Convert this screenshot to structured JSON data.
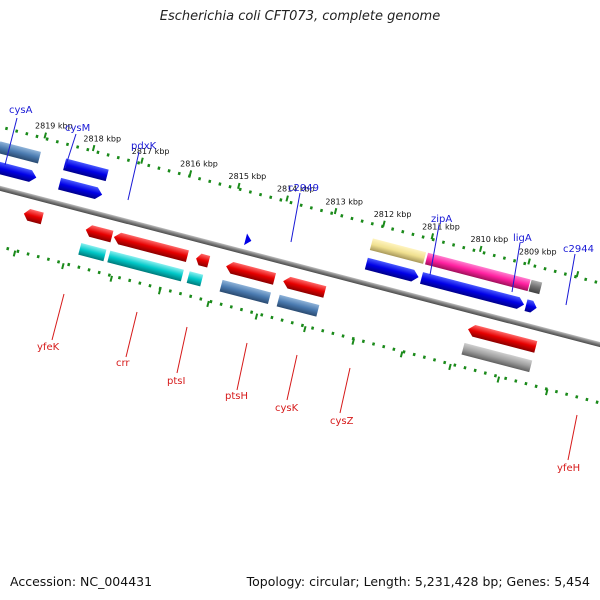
{
  "title": "Escherichia coli CFT073, complete genome",
  "accession": "Accession: NC_004431",
  "summary": "Topology: circular; Length: 5,231,428 bp; Genes: 5,454",
  "colors": {
    "backbone": "#8a8a8a",
    "tick_dots": "#1a8a1a",
    "forward_label": "#1a1ad6",
    "reverse_label": "#d61a1a"
  },
  "scale_labels": [
    "2819 kbp",
    "2818 kbp",
    "2817 kbp",
    "2816 kbp",
    "2815 kbp",
    "2814 kbp",
    "2813 kbp",
    "2812 kbp",
    "2811 kbp",
    "2810 kbp",
    "2809 kbp"
  ],
  "forward_gene_labels": [
    "cysA",
    "cysM",
    "pdxK",
    "c2949",
    "zipA",
    "ligA",
    "c2944"
  ],
  "reverse_gene_labels": [
    "yfeK",
    "crr",
    "ptsI",
    "ptsH",
    "cysK",
    "cysZ",
    "yfeH"
  ]
}
